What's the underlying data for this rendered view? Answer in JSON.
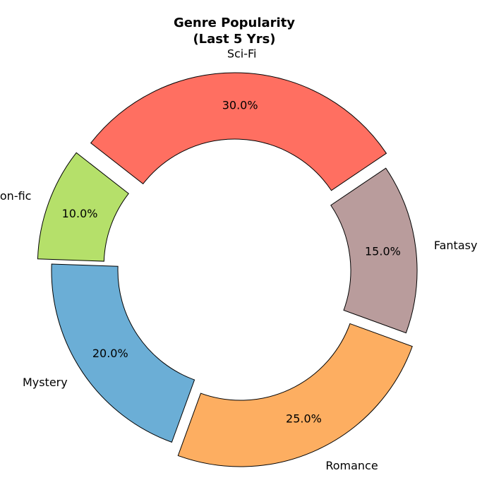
{
  "chart_data": {
    "type": "pie",
    "variant": "donut",
    "title_lines": [
      "Genre Popularity",
      "(Last 5 Yrs)"
    ],
    "start_angle_deg": 142,
    "direction": "clockwise",
    "slices": [
      {
        "label": "Sci-Fi",
        "value": 30,
        "pct_label": "30.0%",
        "color": "#FF6F61",
        "exploded": true
      },
      {
        "label": "Fantasy",
        "value": 15,
        "pct_label": "15.0%",
        "color": "#B99C9C",
        "exploded": false
      },
      {
        "label": "Romance",
        "value": 25,
        "pct_label": "25.0%",
        "color": "#FDAE61",
        "exploded": true
      },
      {
        "label": "Mystery",
        "value": 20,
        "pct_label": "20.0%",
        "color": "#6BAED6",
        "exploded": false
      },
      {
        "label": "Non-fic",
        "value": 10,
        "pct_label": "10.0%",
        "color": "#B5E06A",
        "exploded": true
      }
    ]
  }
}
